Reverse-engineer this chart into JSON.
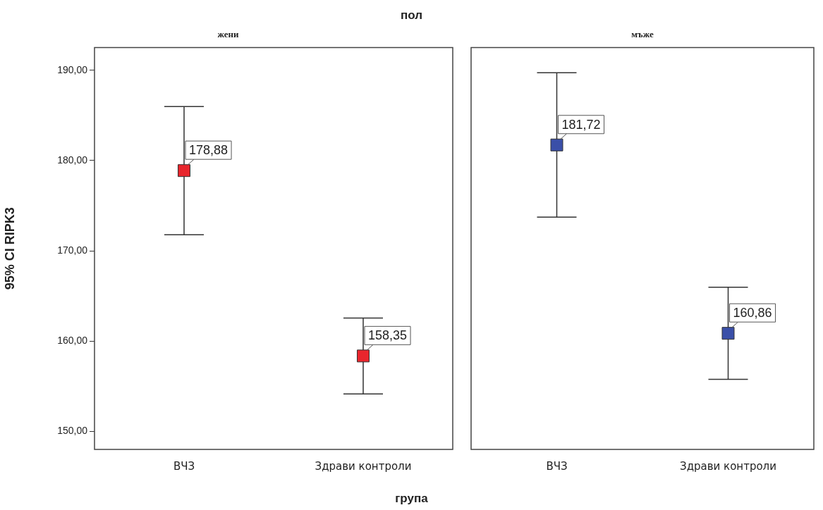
{
  "chart_data": [
    {
      "type": "scatter",
      "title": "жени",
      "annotations": [
        "пол"
      ],
      "xlabel": "група",
      "ylabel": "95% CI RIPK3",
      "categories": [
        "ВЧЗ",
        "Здрави контроли"
      ],
      "series": [
        {
          "color": "#e8262d",
          "values": [
            178.88,
            158.35
          ],
          "errors": [
            7.1,
            4.2
          ],
          "value_labels": [
            "178,88",
            "158,35"
          ]
        }
      ],
      "ylim": [
        148,
        192.5
      ],
      "yticks": [
        {
          "value": 150,
          "label": "150,00"
        },
        {
          "value": 160,
          "label": "160,00"
        },
        {
          "value": 170,
          "label": "170,00"
        },
        {
          "value": 180,
          "label": "180,00"
        },
        {
          "value": 190,
          "label": "190,00"
        }
      ],
      "marker": "square",
      "grid": false
    },
    {
      "type": "scatter",
      "title": "мъже",
      "categories": [
        "ВЧЗ",
        "Здрави контроли"
      ],
      "series": [
        {
          "color": "#3a4fa8",
          "values": [
            181.72,
            160.86
          ],
          "errors": [
            8.0,
            5.1
          ],
          "value_labels": [
            "181,72",
            "160,86"
          ]
        }
      ],
      "ylim": [
        148,
        192.5
      ],
      "tick_labels": "x",
      "marker": "square",
      "grid": false
    }
  ]
}
